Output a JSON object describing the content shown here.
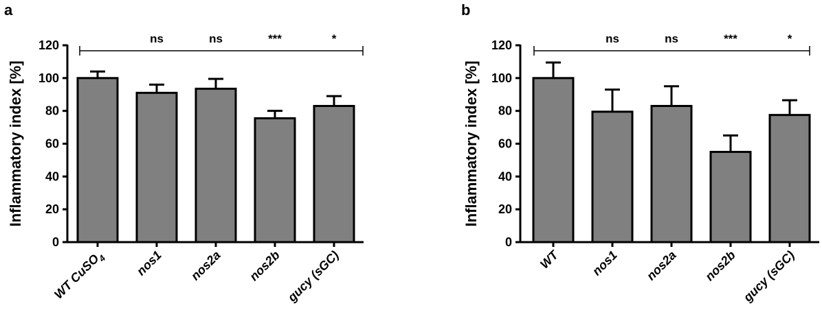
{
  "chart_data": [
    {
      "type": "bar",
      "panel_label": "a",
      "ylabel": "Inflammatory index [%]",
      "ylim": [
        0,
        120
      ],
      "yticks": [
        0,
        20,
        40,
        60,
        80,
        100,
        120
      ],
      "categories": [
        {
          "prefix": "WT CuSO",
          "sub": "4",
          "suffix": ""
        },
        {
          "prefix": "nos1",
          "sub": "",
          "suffix": ""
        },
        {
          "prefix": "nos2a",
          "sub": "",
          "suffix": ""
        },
        {
          "prefix": "nos2b",
          "sub": "",
          "suffix": ""
        },
        {
          "prefix": "gucy (sGC)",
          "sub": "",
          "suffix": ""
        }
      ],
      "values": [
        100,
        91,
        93.5,
        75.5,
        83
      ],
      "errors": [
        4,
        5,
        6,
        4.5,
        6
      ],
      "significance": [
        "",
        "ns",
        "ns",
        "***",
        "*"
      ],
      "bar_color": "#808080",
      "grid": false
    },
    {
      "type": "bar",
      "panel_label": "b",
      "ylabel": "Inflammatory index [%]",
      "ylim": [
        0,
        120
      ],
      "yticks": [
        0,
        20,
        40,
        60,
        80,
        100,
        120
      ],
      "categories": [
        {
          "prefix": "WT",
          "sub": "",
          "suffix": ""
        },
        {
          "prefix": "nos1",
          "sub": "",
          "suffix": ""
        },
        {
          "prefix": "nos2a",
          "sub": "",
          "suffix": ""
        },
        {
          "prefix": "nos2b",
          "sub": "",
          "suffix": ""
        },
        {
          "prefix": "gucy (sGC)",
          "sub": "",
          "suffix": ""
        }
      ],
      "values": [
        100,
        79.5,
        83,
        55,
        77.5
      ],
      "errors": [
        9.5,
        13.5,
        12,
        10,
        9
      ],
      "significance": [
        "",
        "ns",
        "ns",
        "***",
        "*"
      ],
      "bar_color": "#808080",
      "grid": false
    }
  ]
}
